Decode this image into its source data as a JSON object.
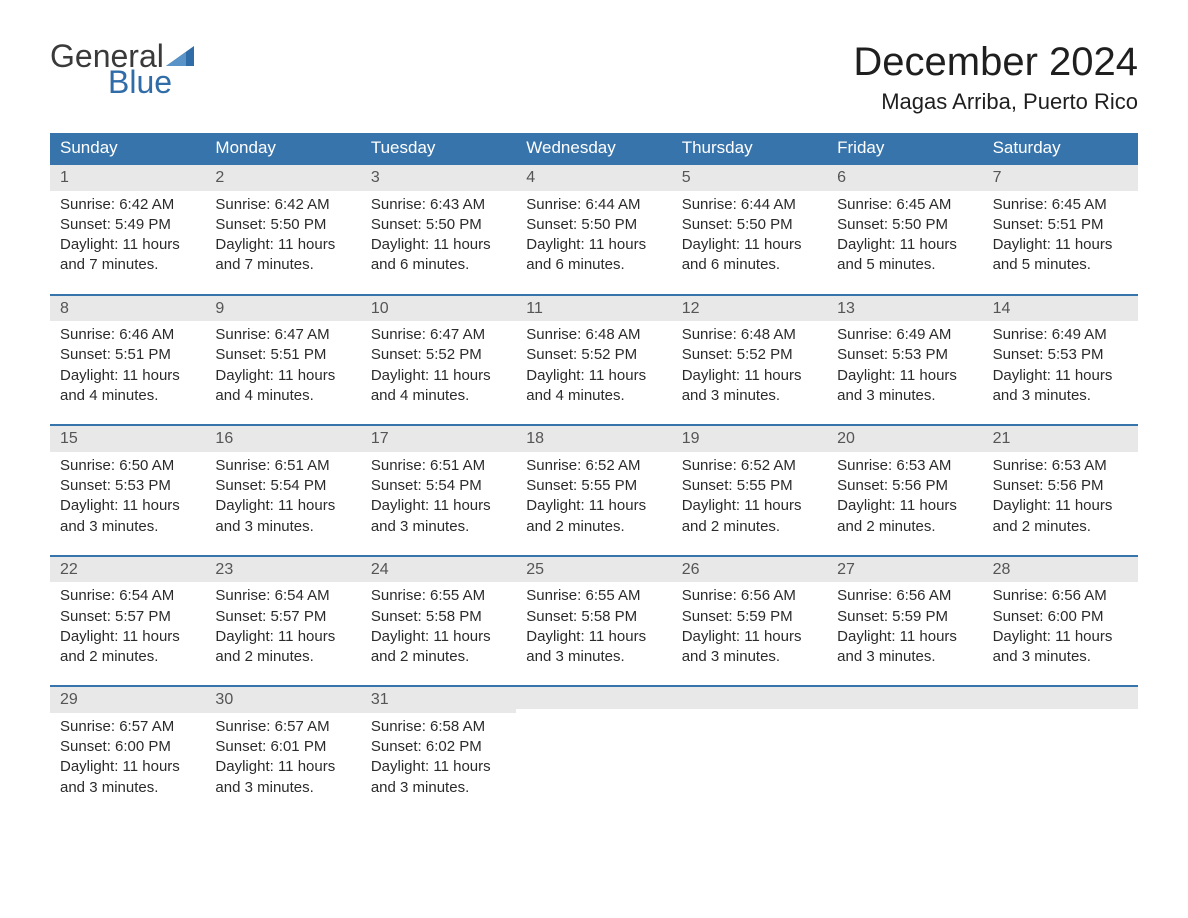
{
  "brand": {
    "word1": "General",
    "word2": "Blue",
    "accent_color": "#2f6ca8"
  },
  "title": {
    "month": "December 2024",
    "location": "Magas Arriba, Puerto Rico"
  },
  "colors": {
    "header_bg": "#3874ac",
    "header_text": "#ffffff",
    "daynum_bg": "#e8e8e8",
    "week_border": "#3874ac",
    "body_text": "#2b2b2b"
  },
  "day_headers": [
    "Sunday",
    "Monday",
    "Tuesday",
    "Wednesday",
    "Thursday",
    "Friday",
    "Saturday"
  ],
  "weeks": [
    [
      {
        "n": "1",
        "sunrise": "Sunrise: 6:42 AM",
        "sunset": "Sunset: 5:49 PM",
        "d1": "Daylight: 11 hours",
        "d2": "and 7 minutes."
      },
      {
        "n": "2",
        "sunrise": "Sunrise: 6:42 AM",
        "sunset": "Sunset: 5:50 PM",
        "d1": "Daylight: 11 hours",
        "d2": "and 7 minutes."
      },
      {
        "n": "3",
        "sunrise": "Sunrise: 6:43 AM",
        "sunset": "Sunset: 5:50 PM",
        "d1": "Daylight: 11 hours",
        "d2": "and 6 minutes."
      },
      {
        "n": "4",
        "sunrise": "Sunrise: 6:44 AM",
        "sunset": "Sunset: 5:50 PM",
        "d1": "Daylight: 11 hours",
        "d2": "and 6 minutes."
      },
      {
        "n": "5",
        "sunrise": "Sunrise: 6:44 AM",
        "sunset": "Sunset: 5:50 PM",
        "d1": "Daylight: 11 hours",
        "d2": "and 6 minutes."
      },
      {
        "n": "6",
        "sunrise": "Sunrise: 6:45 AM",
        "sunset": "Sunset: 5:50 PM",
        "d1": "Daylight: 11 hours",
        "d2": "and 5 minutes."
      },
      {
        "n": "7",
        "sunrise": "Sunrise: 6:45 AM",
        "sunset": "Sunset: 5:51 PM",
        "d1": "Daylight: 11 hours",
        "d2": "and 5 minutes."
      }
    ],
    [
      {
        "n": "8",
        "sunrise": "Sunrise: 6:46 AM",
        "sunset": "Sunset: 5:51 PM",
        "d1": "Daylight: 11 hours",
        "d2": "and 4 minutes."
      },
      {
        "n": "9",
        "sunrise": "Sunrise: 6:47 AM",
        "sunset": "Sunset: 5:51 PM",
        "d1": "Daylight: 11 hours",
        "d2": "and 4 minutes."
      },
      {
        "n": "10",
        "sunrise": "Sunrise: 6:47 AM",
        "sunset": "Sunset: 5:52 PM",
        "d1": "Daylight: 11 hours",
        "d2": "and 4 minutes."
      },
      {
        "n": "11",
        "sunrise": "Sunrise: 6:48 AM",
        "sunset": "Sunset: 5:52 PM",
        "d1": "Daylight: 11 hours",
        "d2": "and 4 minutes."
      },
      {
        "n": "12",
        "sunrise": "Sunrise: 6:48 AM",
        "sunset": "Sunset: 5:52 PM",
        "d1": "Daylight: 11 hours",
        "d2": "and 3 minutes."
      },
      {
        "n": "13",
        "sunrise": "Sunrise: 6:49 AM",
        "sunset": "Sunset: 5:53 PM",
        "d1": "Daylight: 11 hours",
        "d2": "and 3 minutes."
      },
      {
        "n": "14",
        "sunrise": "Sunrise: 6:49 AM",
        "sunset": "Sunset: 5:53 PM",
        "d1": "Daylight: 11 hours",
        "d2": "and 3 minutes."
      }
    ],
    [
      {
        "n": "15",
        "sunrise": "Sunrise: 6:50 AM",
        "sunset": "Sunset: 5:53 PM",
        "d1": "Daylight: 11 hours",
        "d2": "and 3 minutes."
      },
      {
        "n": "16",
        "sunrise": "Sunrise: 6:51 AM",
        "sunset": "Sunset: 5:54 PM",
        "d1": "Daylight: 11 hours",
        "d2": "and 3 minutes."
      },
      {
        "n": "17",
        "sunrise": "Sunrise: 6:51 AM",
        "sunset": "Sunset: 5:54 PM",
        "d1": "Daylight: 11 hours",
        "d2": "and 3 minutes."
      },
      {
        "n": "18",
        "sunrise": "Sunrise: 6:52 AM",
        "sunset": "Sunset: 5:55 PM",
        "d1": "Daylight: 11 hours",
        "d2": "and 2 minutes."
      },
      {
        "n": "19",
        "sunrise": "Sunrise: 6:52 AM",
        "sunset": "Sunset: 5:55 PM",
        "d1": "Daylight: 11 hours",
        "d2": "and 2 minutes."
      },
      {
        "n": "20",
        "sunrise": "Sunrise: 6:53 AM",
        "sunset": "Sunset: 5:56 PM",
        "d1": "Daylight: 11 hours",
        "d2": "and 2 minutes."
      },
      {
        "n": "21",
        "sunrise": "Sunrise: 6:53 AM",
        "sunset": "Sunset: 5:56 PM",
        "d1": "Daylight: 11 hours",
        "d2": "and 2 minutes."
      }
    ],
    [
      {
        "n": "22",
        "sunrise": "Sunrise: 6:54 AM",
        "sunset": "Sunset: 5:57 PM",
        "d1": "Daylight: 11 hours",
        "d2": "and 2 minutes."
      },
      {
        "n": "23",
        "sunrise": "Sunrise: 6:54 AM",
        "sunset": "Sunset: 5:57 PM",
        "d1": "Daylight: 11 hours",
        "d2": "and 2 minutes."
      },
      {
        "n": "24",
        "sunrise": "Sunrise: 6:55 AM",
        "sunset": "Sunset: 5:58 PM",
        "d1": "Daylight: 11 hours",
        "d2": "and 2 minutes."
      },
      {
        "n": "25",
        "sunrise": "Sunrise: 6:55 AM",
        "sunset": "Sunset: 5:58 PM",
        "d1": "Daylight: 11 hours",
        "d2": "and 3 minutes."
      },
      {
        "n": "26",
        "sunrise": "Sunrise: 6:56 AM",
        "sunset": "Sunset: 5:59 PM",
        "d1": "Daylight: 11 hours",
        "d2": "and 3 minutes."
      },
      {
        "n": "27",
        "sunrise": "Sunrise: 6:56 AM",
        "sunset": "Sunset: 5:59 PM",
        "d1": "Daylight: 11 hours",
        "d2": "and 3 minutes."
      },
      {
        "n": "28",
        "sunrise": "Sunrise: 6:56 AM",
        "sunset": "Sunset: 6:00 PM",
        "d1": "Daylight: 11 hours",
        "d2": "and 3 minutes."
      }
    ],
    [
      {
        "n": "29",
        "sunrise": "Sunrise: 6:57 AM",
        "sunset": "Sunset: 6:00 PM",
        "d1": "Daylight: 11 hours",
        "d2": "and 3 minutes."
      },
      {
        "n": "30",
        "sunrise": "Sunrise: 6:57 AM",
        "sunset": "Sunset: 6:01 PM",
        "d1": "Daylight: 11 hours",
        "d2": "and 3 minutes."
      },
      {
        "n": "31",
        "sunrise": "Sunrise: 6:58 AM",
        "sunset": "Sunset: 6:02 PM",
        "d1": "Daylight: 11 hours",
        "d2": "and 3 minutes."
      },
      {
        "empty": true
      },
      {
        "empty": true
      },
      {
        "empty": true
      },
      {
        "empty": true
      }
    ]
  ]
}
